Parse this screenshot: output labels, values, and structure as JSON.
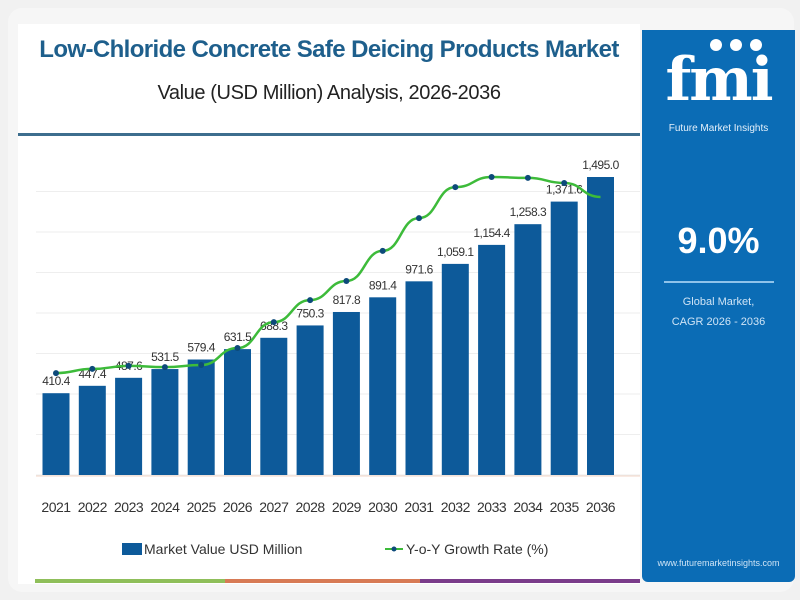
{
  "header": {
    "title": "Low-Chloride Concrete Safe Deicing Products Market",
    "subtitle": "Value (USD Million) Analysis, 2026-2036"
  },
  "sidebar": {
    "logo_text": "fmi",
    "logo_subtitle": "Future Market Insights",
    "cagr_value": "9.0%",
    "cagr_label_line1": "Global Market,",
    "cagr_label_line2": "CAGR 2026 - 2036",
    "website": "www.futuremarketinsights.com"
  },
  "colors": {
    "bar": "#0d5a9a",
    "line": "#3dbb3a",
    "marker": "#0d4a7a",
    "title": "#1e5f8c",
    "sidebar": "#0b6cb5",
    "bottom_stripes": [
      "#8fbf5a",
      "#d77a55",
      "#7a3c8a"
    ]
  },
  "chart_data": {
    "type": "bar",
    "title": "Low-Chloride Concrete Safe Deicing Products Market",
    "subtitle": "Value (USD Million) Analysis, 2026-2036",
    "xlabel": "",
    "ylabel": "",
    "categories": [
      "2021",
      "2022",
      "2023",
      "2024",
      "2025",
      "2026",
      "2027",
      "2028",
      "2029",
      "2030",
      "2031",
      "2032",
      "2033",
      "2034",
      "2035",
      "2036"
    ],
    "series": [
      {
        "name": "Market Value USD Million",
        "type": "bar",
        "values": [
          410.4,
          447.4,
          487.6,
          531.5,
          579.4,
          631.5,
          688.3,
          750.3,
          817.8,
          891.4,
          971.6,
          1059.1,
          1154.4,
          1258.3,
          1371.6,
          1495.0
        ],
        "labels": [
          "410.4",
          "447.4",
          "487.6",
          "531.5",
          "579.4",
          "631.5",
          "688.3",
          "750.3",
          "817.8",
          "891.4",
          "971.6",
          "1,059.1",
          "1,154.4",
          "1,258.3",
          "1,371.6",
          "1,495.0"
        ]
      },
      {
        "name": "Y-o-Y Growth Rate (%)",
        "type": "line",
        "note": "unlabeled; relative index 0-100 estimated from line height",
        "values": [
          34.2,
          35.6,
          36.6,
          36.2,
          36.9,
          42.6,
          51.3,
          58.7,
          65.1,
          75.2,
          86.2,
          96.6,
          100,
          99.7,
          98.0,
          93.3
        ]
      }
    ],
    "ylim": [
      0,
      1495
    ],
    "grid": true,
    "legend": "bottom"
  }
}
